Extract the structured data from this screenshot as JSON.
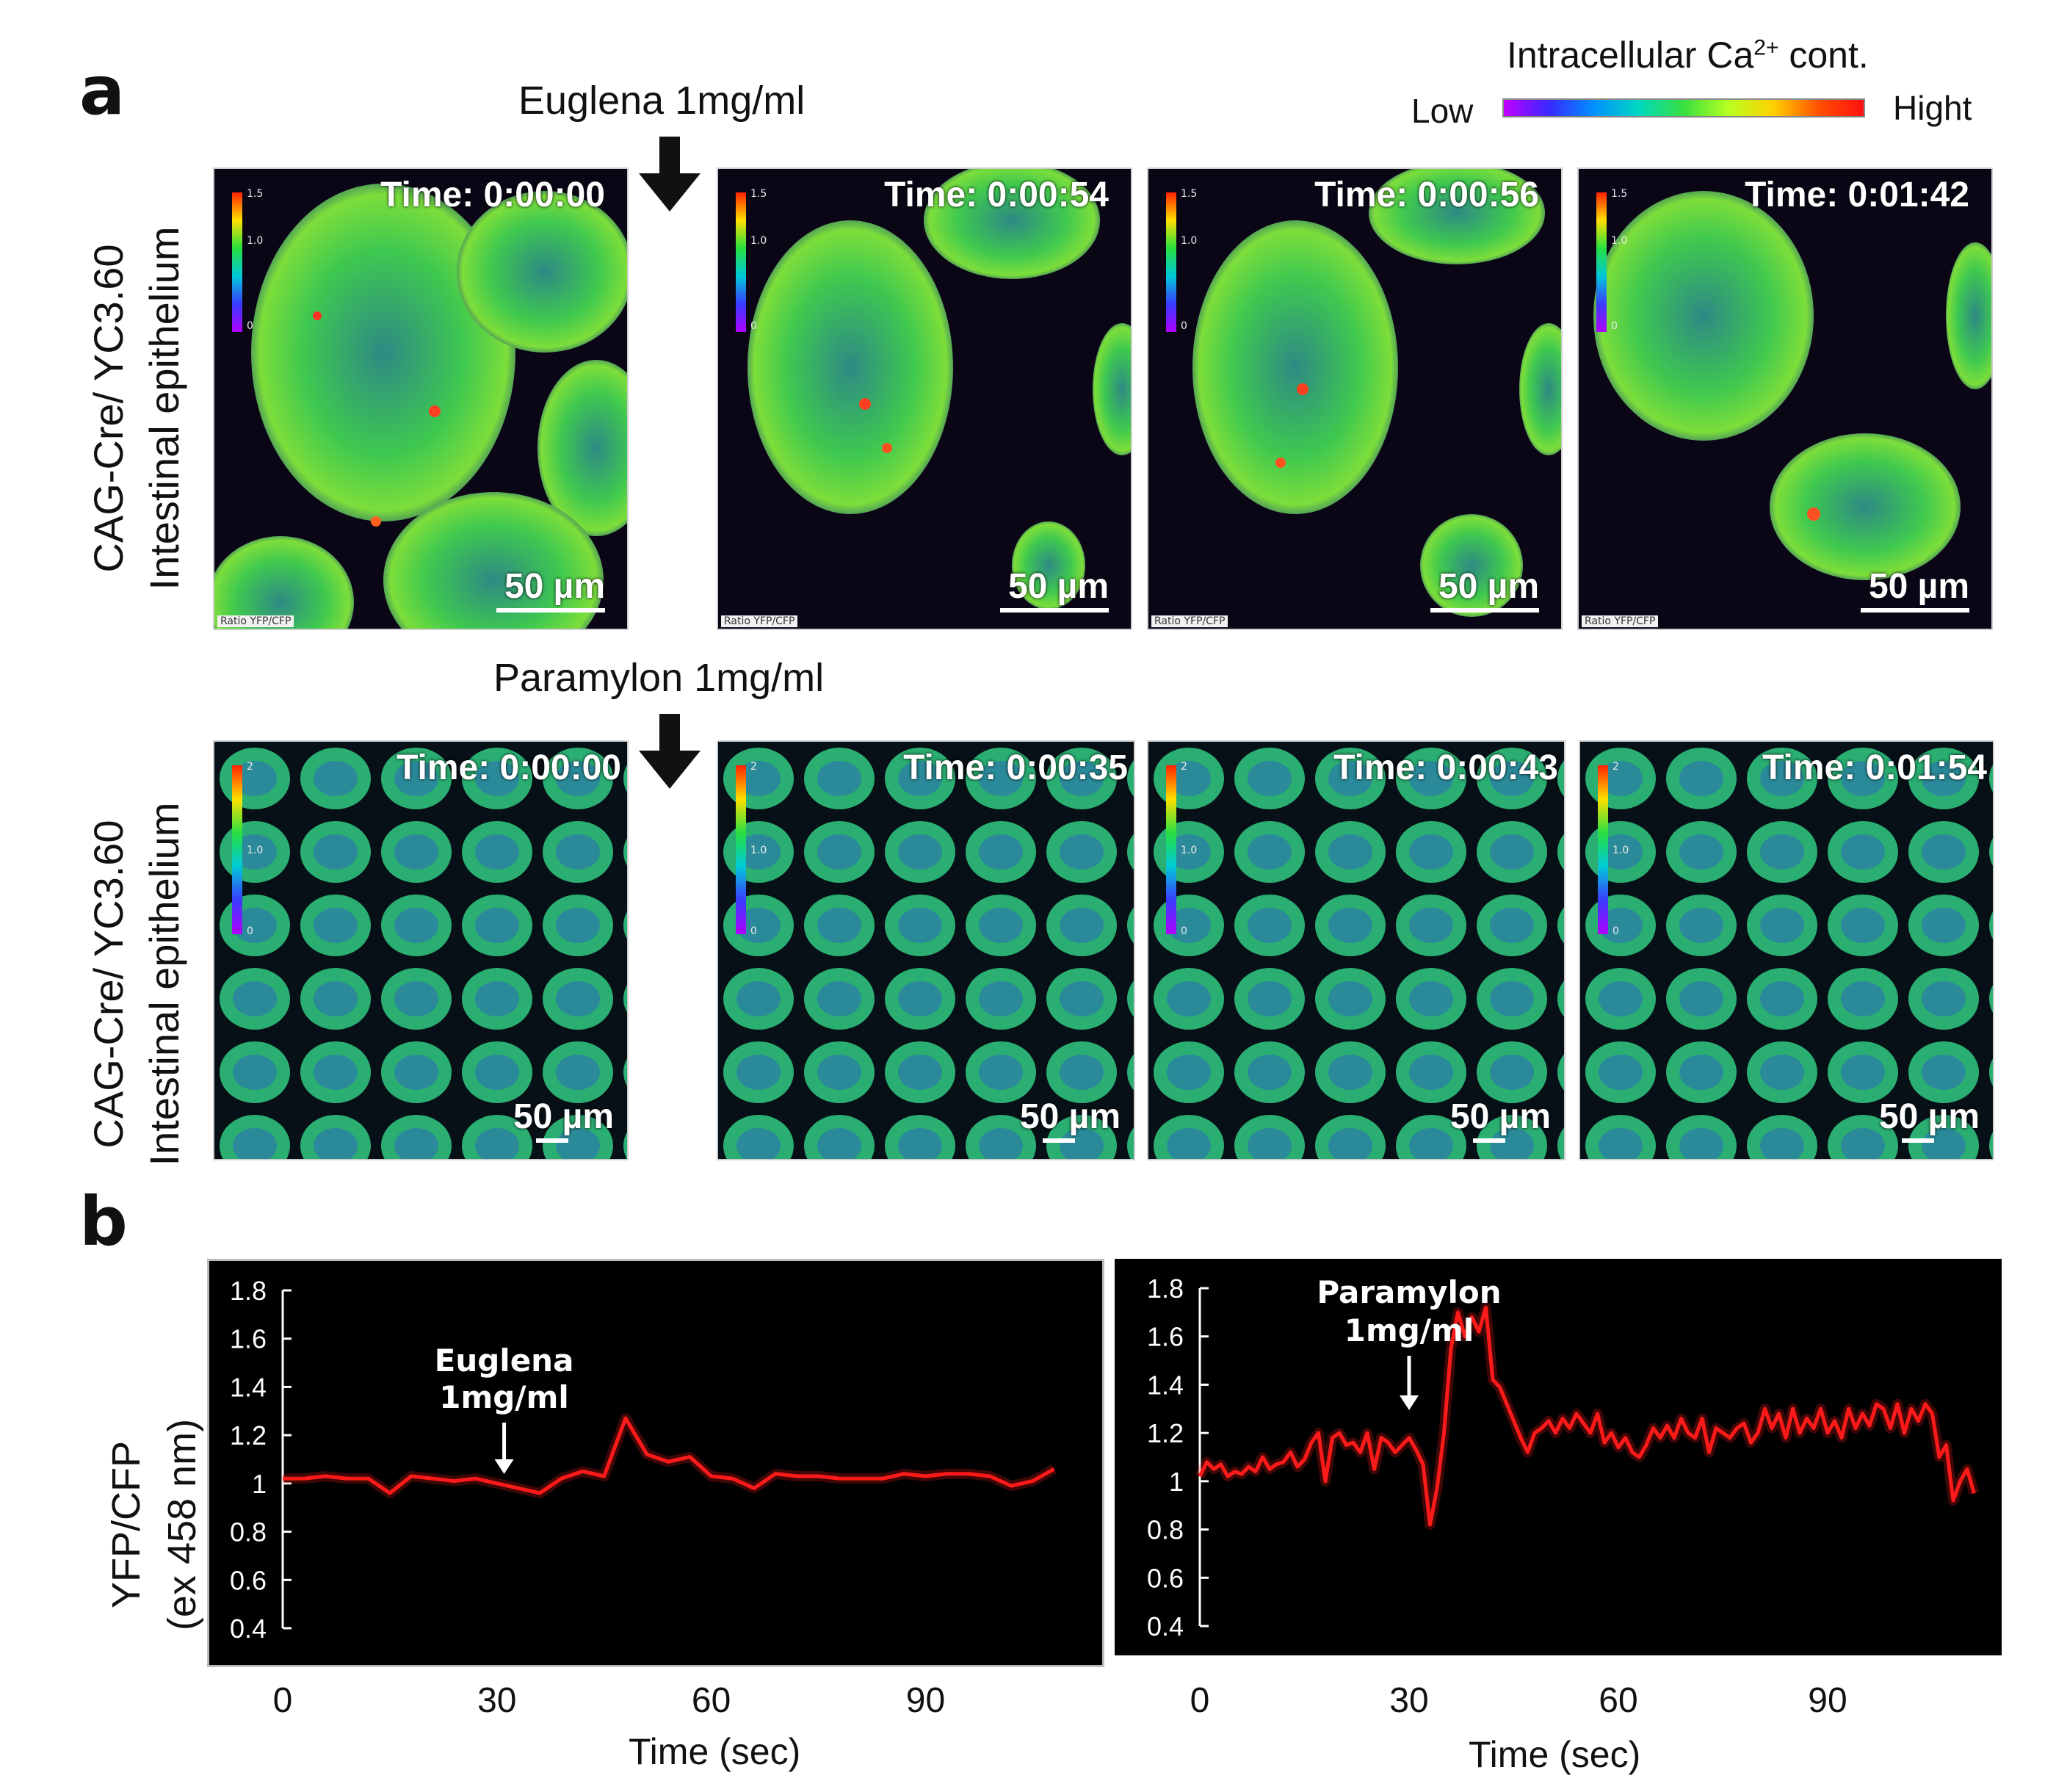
{
  "panel_labels": {
    "a": "a",
    "b": "b"
  },
  "colorbar": {
    "title_prefix": "Intracellular  Ca",
    "title_sup": "2+",
    "title_suffix": " cont.",
    "low_label": "Low",
    "high_label": "Hight"
  },
  "rows": [
    {
      "treatment": "Euglena 1mg/ml",
      "row_label_line1": "CAG-Cre/ YC3.60",
      "row_label_line2": "Intestinal epithelium",
      "scale_max": "1.5",
      "scale_mid": "1.0",
      "scale_min": "0",
      "frames": [
        {
          "time": "Time: 0:00:00",
          "scale": "50 µm",
          "ratio": "Ratio YFP/CFP"
        },
        {
          "time": "Time: 0:00:54",
          "scale": "50 µm",
          "ratio": "Ratio YFP/CFP"
        },
        {
          "time": "Time: 0:00:56",
          "scale": "50 µm",
          "ratio": "Ratio YFP/CFP"
        },
        {
          "time": "Time: 0:01:42",
          "scale": "50 µm",
          "ratio": "Ratio YFP/CFP"
        }
      ]
    },
    {
      "treatment": "Paramylon 1mg/ml",
      "row_label_line1": "CAG-Cre/ YC3.60",
      "row_label_line2": "Intestinal epithelium",
      "scale_max": "2",
      "scale_mid": "1.0",
      "scale_min": "0",
      "frames": [
        {
          "time": "Time: 0:00:00",
          "scale": "50 µm"
        },
        {
          "time": "Time: 0:00:35",
          "scale": "50 µm"
        },
        {
          "time": "Time: 0:00:43",
          "scale": "50 µm"
        },
        {
          "time": "Time: 0:01:54",
          "scale": "50 µm"
        }
      ]
    }
  ],
  "ylabel_line1": "YFP/CFP",
  "ylabel_line2": "(ex 458 nm)",
  "chart_data": [
    {
      "type": "line",
      "title": "",
      "xlabel": "Time (sec)",
      "ylabel": "YFP/CFP (ex 458 nm)",
      "xlim": [
        0,
        110
      ],
      "ylim": [
        0.4,
        1.8
      ],
      "xticks": [
        0,
        30,
        60,
        90
      ],
      "yticks": [
        "0.4",
        "0.6",
        "0.8",
        "1",
        "1.2",
        "1.4",
        "1.6",
        "1.8"
      ],
      "annotation": {
        "line1": "Euglena",
        "line2": "1mg/ml",
        "x": 31
      },
      "series": [
        {
          "name": "Euglena 1mg/ml",
          "color": "#ff1a1a",
          "x": [
            0,
            3,
            6,
            9,
            12,
            15,
            18,
            21,
            24,
            27,
            30,
            33,
            36,
            39,
            42,
            45,
            48,
            51,
            54,
            57,
            60,
            63,
            66,
            69,
            72,
            75,
            78,
            81,
            84,
            87,
            90,
            93,
            96,
            99,
            102,
            105,
            108
          ],
          "y": [
            1.02,
            1.02,
            1.03,
            1.02,
            1.02,
            0.96,
            1.03,
            1.02,
            1.01,
            1.02,
            1.0,
            0.98,
            0.96,
            1.02,
            1.05,
            1.03,
            1.27,
            1.12,
            1.09,
            1.11,
            1.03,
            1.02,
            0.98,
            1.04,
            1.03,
            1.03,
            1.02,
            1.02,
            1.02,
            1.04,
            1.03,
            1.04,
            1.04,
            1.03,
            0.99,
            1.01,
            1.06
          ]
        }
      ]
    },
    {
      "type": "line",
      "title": "",
      "xlabel": "Time (sec)",
      "ylabel": "YFP/CFP (ex 458 nm)",
      "xlim": [
        0,
        112
      ],
      "ylim": [
        0.4,
        1.8
      ],
      "xticks": [
        0,
        30,
        60,
        90
      ],
      "yticks": [
        "0.4",
        "0.6",
        "0.8",
        "1",
        "1.2",
        "1.4",
        "1.6",
        "1.8"
      ],
      "annotation": {
        "line1": "Paramylon",
        "line2": "1mg/ml",
        "x": 30
      },
      "series": [
        {
          "name": "Paramylon 1mg/ml",
          "color": "#ff1a1a",
          "x": [
            0,
            1,
            2,
            3,
            4,
            5,
            6,
            7,
            8,
            9,
            10,
            11,
            12,
            13,
            14,
            15,
            16,
            17,
            18,
            19,
            20,
            21,
            22,
            23,
            24,
            25,
            26,
            27,
            28,
            29,
            30,
            31,
            32,
            33,
            34,
            35,
            36,
            37,
            38,
            39,
            40,
            41,
            42,
            43,
            44,
            45,
            46,
            47,
            48,
            49,
            50,
            51,
            52,
            53,
            54,
            55,
            56,
            57,
            58,
            59,
            60,
            61,
            62,
            63,
            64,
            65,
            66,
            67,
            68,
            69,
            70,
            71,
            72,
            73,
            74,
            75,
            76,
            77,
            78,
            79,
            80,
            81,
            82,
            83,
            84,
            85,
            86,
            87,
            88,
            89,
            90,
            91,
            92,
            93,
            94,
            95,
            96,
            97,
            98,
            99,
            100,
            101,
            102,
            103,
            104,
            105,
            106,
            107,
            108,
            109,
            110,
            111
          ],
          "y": [
            1.02,
            1.08,
            1.05,
            1.07,
            1.02,
            1.04,
            1.03,
            1.06,
            1.04,
            1.1,
            1.05,
            1.07,
            1.08,
            1.12,
            1.06,
            1.09,
            1.16,
            1.2,
            1.0,
            1.18,
            1.2,
            1.15,
            1.16,
            1.12,
            1.2,
            1.05,
            1.18,
            1.16,
            1.12,
            1.15,
            1.18,
            1.13,
            1.07,
            0.82,
            0.97,
            1.2,
            1.55,
            1.7,
            1.6,
            1.68,
            1.62,
            1.72,
            1.42,
            1.39,
            1.32,
            1.25,
            1.18,
            1.12,
            1.2,
            1.22,
            1.25,
            1.2,
            1.26,
            1.22,
            1.28,
            1.24,
            1.2,
            1.28,
            1.16,
            1.2,
            1.14,
            1.18,
            1.12,
            1.1,
            1.15,
            1.22,
            1.18,
            1.23,
            1.18,
            1.26,
            1.2,
            1.18,
            1.26,
            1.12,
            1.22,
            1.2,
            1.18,
            1.22,
            1.24,
            1.16,
            1.2,
            1.3,
            1.22,
            1.28,
            1.18,
            1.3,
            1.2,
            1.26,
            1.22,
            1.3,
            1.2,
            1.25,
            1.18,
            1.3,
            1.22,
            1.28,
            1.23,
            1.32,
            1.3,
            1.22,
            1.32,
            1.2,
            1.3,
            1.25,
            1.32,
            1.28,
            1.1,
            1.15,
            0.92,
            1.0,
            1.05,
            0.95
          ]
        }
      ]
    }
  ]
}
